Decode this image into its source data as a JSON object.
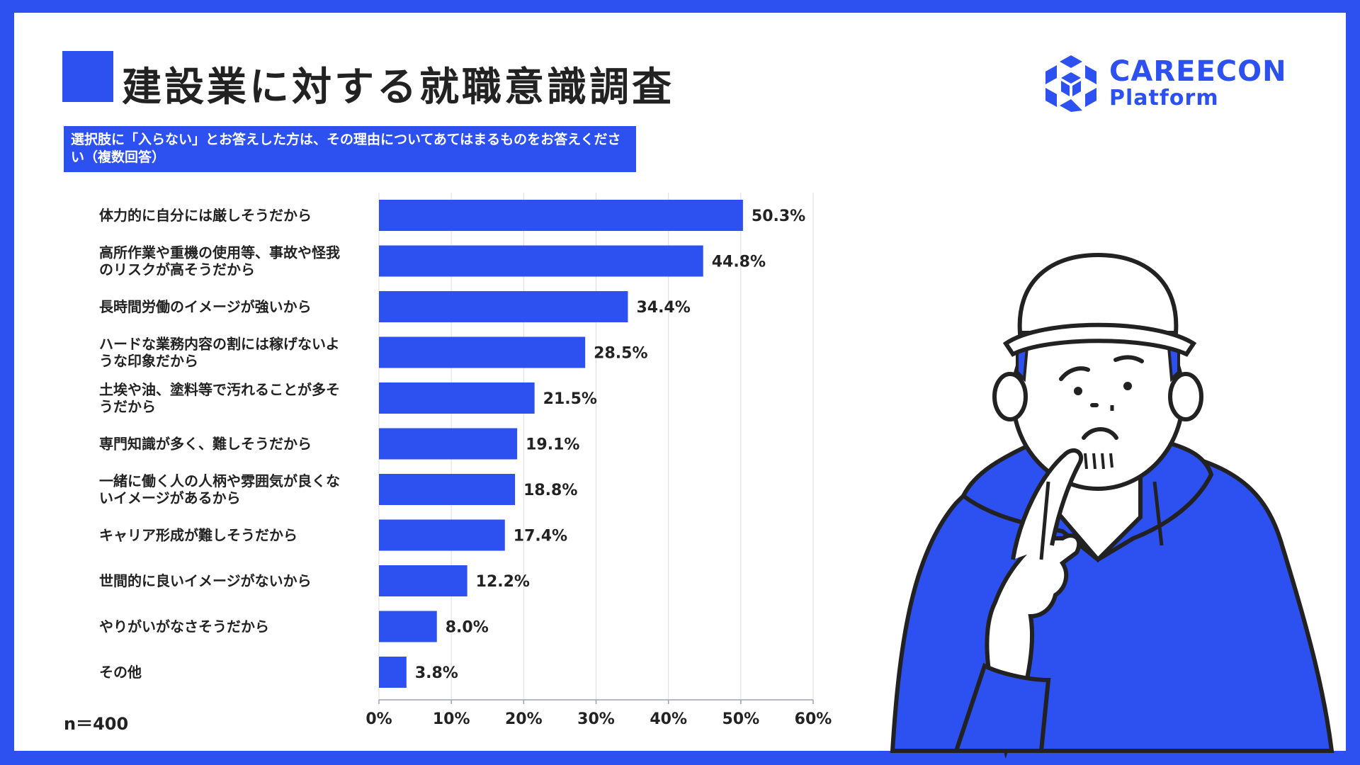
{
  "title": "建設業に対する就職意識調査",
  "question": "選択肢に「入らない」とお答えした方は、その理由についてあてはまるものをお答えください（複数回答）",
  "logo": {
    "line1": "CAREECON",
    "line2": "Platform",
    "icon": "cube-hex-icon"
  },
  "sample_size": "n＝400",
  "colors": {
    "accent": "#2d50f0",
    "text": "#222222",
    "grid": "#dcdcdc"
  },
  "chart_data": {
    "type": "bar",
    "orientation": "horizontal",
    "categories": [
      [
        "体力的に自分には厳しそうだから"
      ],
      [
        "高所作業や重機の使用等、事故や怪我",
        "のリスクが高そうだから"
      ],
      [
        "長時間労働のイメージが強いから"
      ],
      [
        "ハードな業務内容の割には稼げないよ",
        "うな印象だから"
      ],
      [
        "土埃や油、塗料等で汚れることが多そ",
        "うだから"
      ],
      [
        "専門知識が多く、難しそうだから"
      ],
      [
        "一緒に働く人の人柄や雰囲気が良くな",
        "いイメージがあるから"
      ],
      [
        "キャリア形成が難しそうだから"
      ],
      [
        "世間的に良いイメージがないから"
      ],
      [
        "やりがいがなさそうだから"
      ],
      [
        "その他"
      ]
    ],
    "values": [
      50.3,
      44.8,
      34.4,
      28.5,
      21.5,
      19.1,
      18.8,
      17.4,
      12.2,
      8.0,
      3.8
    ],
    "value_labels": [
      "50.3%",
      "44.8%",
      "34.4%",
      "28.5%",
      "21.5%",
      "19.1%",
      "18.8%",
      "17.4%",
      "12.2%",
      "8.0%",
      "3.8%"
    ],
    "xlim": [
      0,
      60
    ],
    "xticks": [
      "0%",
      "10%",
      "20%",
      "30%",
      "40%",
      "50%",
      "60%"
    ],
    "grid": true
  }
}
